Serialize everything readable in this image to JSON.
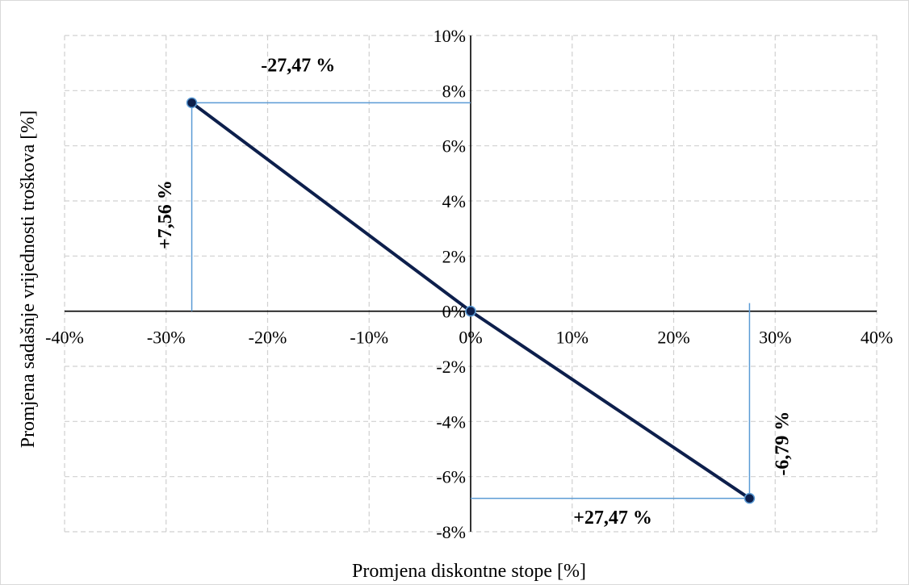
{
  "chart_data": {
    "type": "line",
    "xlabel": "Promjena diskontne stope [%]",
    "ylabel": "Promjena sadašnje vrijednosti troškova [%]",
    "xlim": [
      -40,
      40
    ],
    "ylim": [
      -8,
      10
    ],
    "x_ticks": [
      -40,
      -30,
      -20,
      -10,
      0,
      10,
      20,
      30,
      40
    ],
    "y_ticks": [
      -8,
      -6,
      -4,
      -2,
      0,
      2,
      4,
      6,
      8,
      10
    ],
    "x_tick_labels": [
      "-40%",
      "-30%",
      "-20%",
      "-10%",
      "0%",
      "10%",
      "20%",
      "30%",
      "40%"
    ],
    "y_tick_labels": [
      "-8%",
      "-6%",
      "-4%",
      "-2%",
      "0%",
      "2%",
      "4%",
      "6%",
      "8%",
      "10%"
    ],
    "grid": true,
    "series": [
      {
        "x": [
          -27.47,
          0,
          27.47
        ],
        "y": [
          7.56,
          0,
          -6.79
        ],
        "color": "#0d1f4c"
      }
    ],
    "guide_color": "#5b9bd5",
    "annotations": [
      {
        "text": "-27,47 %",
        "x": -17,
        "y": 8.7,
        "rotate": 0
      },
      {
        "text": "+7,56 %",
        "x": -29.5,
        "y": 3.5,
        "rotate": -90
      },
      {
        "text": "+27,47 %",
        "x": 14,
        "y": -7.7,
        "rotate": 0
      },
      {
        "text": "-6,79 %",
        "x": 31.3,
        "y": -4.8,
        "rotate": -90
      }
    ]
  }
}
